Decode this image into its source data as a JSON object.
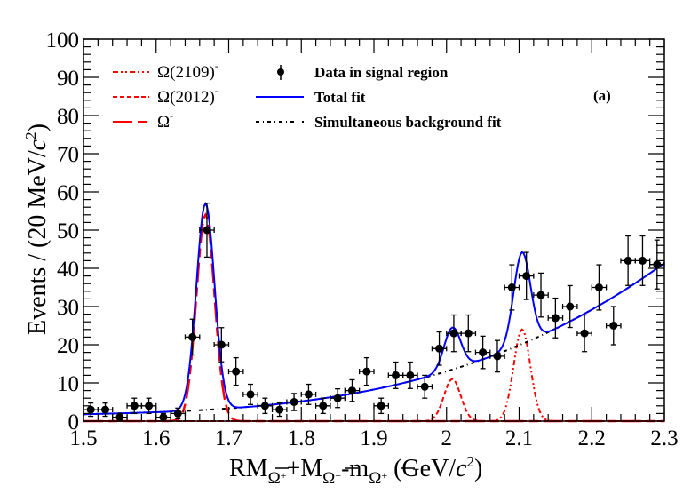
{
  "chart_data": {
    "type": "scatter",
    "title": "",
    "panel_label": "(a)",
    "xlabel": {
      "parts": [
        "RM",
        "Ω",
        "+",
        "+M",
        "Ω",
        "+",
        "-m",
        "Ω",
        "+",
        " (GeV/",
        "c",
        "2",
        ")"
      ]
    },
    "ylabel": {
      "parts": [
        "Events / (20 MeV/",
        "c",
        "2",
        ")"
      ]
    },
    "xlim": [
      1.5,
      2.3
    ],
    "ylim": [
      0,
      100
    ],
    "x_ticks": [
      "1.5",
      "1.6",
      "1.7",
      "1.8",
      "1.9",
      "2",
      "2.1",
      "2.2",
      "2.3"
    ],
    "x_tick_values": [
      1.5,
      1.6,
      1.7,
      1.8,
      1.9,
      2.0,
      2.1,
      2.2,
      2.3
    ],
    "y_ticks": [
      "0",
      "10",
      "20",
      "30",
      "40",
      "50",
      "60",
      "70",
      "80",
      "90",
      "100"
    ],
    "y_tick_values": [
      0,
      10,
      20,
      30,
      40,
      50,
      60,
      70,
      80,
      90,
      100
    ],
    "grid": false,
    "legend": [
      {
        "label": "Ω(2109)",
        "sup": "-",
        "style": "dash-dot-dot",
        "color": "#ff0000"
      },
      {
        "label": "Ω(2012)",
        "sup": "-",
        "style": "dashed",
        "color": "#ff0000"
      },
      {
        "label": "Ω",
        "sup": "-",
        "style": "long-dash",
        "color": "#ff0000"
      },
      {
        "label": "Data in signal region",
        "style": "marker",
        "color": "#000000"
      },
      {
        "label": "Total fit",
        "style": "solid",
        "color": "#0000ff"
      },
      {
        "label": "Simultaneous background fit",
        "style": "dash-dot",
        "color": "#000000"
      }
    ],
    "legend_position": "top",
    "data": {
      "name": "Data in signal region",
      "x": [
        1.51,
        1.53,
        1.55,
        1.57,
        1.59,
        1.61,
        1.63,
        1.65,
        1.67,
        1.69,
        1.71,
        1.73,
        1.75,
        1.77,
        1.79,
        1.81,
        1.83,
        1.85,
        1.87,
        1.89,
        1.91,
        1.93,
        1.95,
        1.97,
        1.99,
        2.01,
        2.03,
        2.05,
        2.07,
        2.09,
        2.11,
        2.13,
        2.15,
        2.17,
        2.19,
        2.21,
        2.23,
        2.25,
        2.27,
        2.29
      ],
      "y": [
        3,
        3,
        1,
        4,
        4,
        1,
        2,
        22,
        50,
        20,
        13,
        7,
        4,
        3,
        5,
        7,
        4,
        6,
        8,
        13,
        4,
        12,
        12,
        9,
        19,
        23,
        23,
        18,
        17,
        35,
        38,
        33,
        27,
        30,
        23,
        35,
        25,
        42,
        42,
        41
      ],
      "x_err": 0.01,
      "y_err": "sqrt"
    },
    "series": [
      {
        "name": "Total fit",
        "color": "#0000ff"
      },
      {
        "name": "Simultaneous background fit",
        "color": "#000000"
      },
      {
        "name": "Ω-",
        "color": "#ff0000",
        "peak_x": 1.668,
        "peak_y": 54
      },
      {
        "name": "Ω(2012)-",
        "color": "#ff0000",
        "peak_x": 2.008,
        "peak_y": 11
      },
      {
        "name": "Ω(2109)-",
        "color": "#ff0000",
        "peak_x": 2.104,
        "peak_y": 24
      }
    ],
    "colors": {
      "signal": "#ff0000",
      "total": "#0000ff",
      "data": "#000000",
      "background": "#000000"
    }
  }
}
